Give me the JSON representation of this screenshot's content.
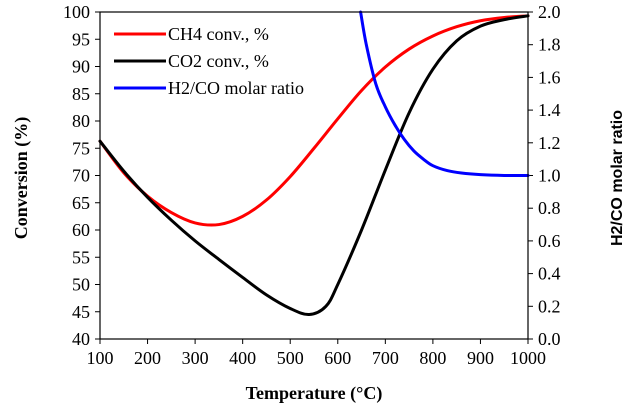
{
  "chart_data": {
    "type": "line",
    "xlabel": "Temperature (°C)",
    "ylabel": "Conversion  (%)",
    "y2label": "H2/CO molar ratio",
    "xlim": [
      100,
      1000
    ],
    "ylim": [
      40,
      100
    ],
    "y2lim": [
      0.0,
      2.0
    ],
    "x_ticks": [
      "100",
      "200",
      "300",
      "400",
      "500",
      "600",
      "700",
      "800",
      "900",
      "1000"
    ],
    "y_ticks": [
      "40",
      "45",
      "50",
      "55",
      "60",
      "65",
      "70",
      "75",
      "80",
      "85",
      "90",
      "95",
      "100"
    ],
    "y2_ticks": [
      "0.0",
      "0.2",
      "0.4",
      "0.6",
      "0.8",
      "1.0",
      "1.2",
      "1.4",
      "1.6",
      "1.8",
      "2.0"
    ],
    "grid": false,
    "legend_position": "top-left",
    "series": [
      {
        "name": "CH4 conv., %",
        "color": "#ff0000",
        "axis": "left",
        "x": [
          100,
          150,
          200,
          250,
          300,
          350,
          400,
          450,
          500,
          550,
          600,
          650,
          700,
          750,
          800,
          850,
          900,
          950,
          1000
        ],
        "y": [
          76.3,
          70.5,
          66.2,
          63.2,
          61.3,
          61.0,
          62.5,
          65.5,
          69.8,
          75.0,
          80.4,
          85.6,
          89.9,
          93.2,
          95.6,
          97.3,
          98.4,
          99.0,
          99.3
        ]
      },
      {
        "name": "CO2 conv., %",
        "color": "#000000",
        "axis": "left",
        "x": [
          100,
          150,
          200,
          250,
          300,
          350,
          400,
          450,
          500,
          540,
          575,
          600,
          650,
          700,
          750,
          800,
          850,
          900,
          950,
          1000
        ],
        "y": [
          76.3,
          70.8,
          66.0,
          61.8,
          58.0,
          54.6,
          51.3,
          48.1,
          45.6,
          44.5,
          46.0,
          50.0,
          60.0,
          71.0,
          81.5,
          89.5,
          94.7,
          97.4,
          98.6,
          99.3
        ]
      },
      {
        "name": "H2/CO molar ratio",
        "color": "#0000ff",
        "axis": "right",
        "x": [
          648,
          660,
          680,
          700,
          720,
          740,
          760,
          780,
          800,
          830,
          860,
          900,
          950,
          1000
        ],
        "y": [
          2.0,
          1.8,
          1.56,
          1.42,
          1.31,
          1.22,
          1.15,
          1.1,
          1.06,
          1.03,
          1.015,
          1.005,
          1.0,
          1.0
        ]
      }
    ]
  }
}
